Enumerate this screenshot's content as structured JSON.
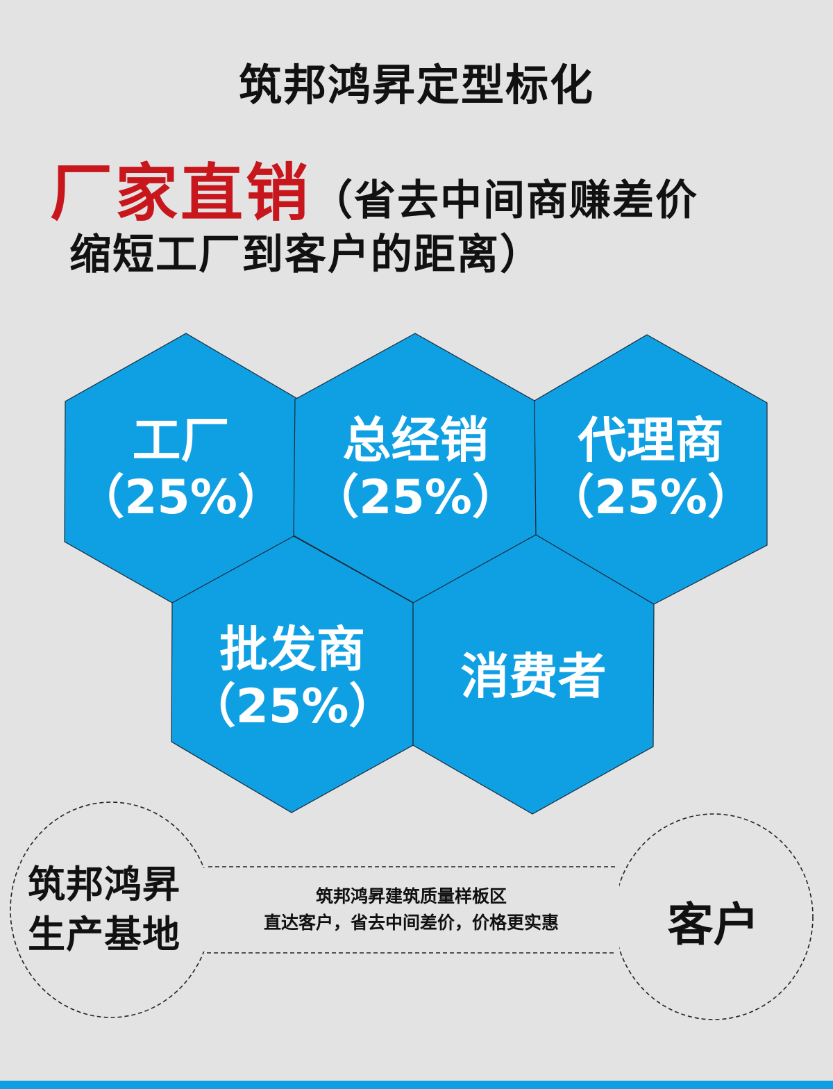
{
  "title": "筑邦鸿昇定型标化",
  "headline": {
    "highlight": "厂家直销",
    "paren_line1": "（省去中间商赚差价",
    "paren_line2": "缩短工厂到客户的距离）",
    "highlight_color": "#c8161d"
  },
  "hexagons": [
    {
      "name": "工厂",
      "pct": "（25%）"
    },
    {
      "name": "总经销",
      "pct": "（25%）"
    },
    {
      "name": "代理商",
      "pct": "（25%）"
    },
    {
      "name": "批发商",
      "pct": "（25%）"
    },
    {
      "name": "消费者",
      "pct": ""
    }
  ],
  "hex_color": "#0fa0e3",
  "flow": {
    "left_line1": "筑邦鸿昇",
    "left_line2": "生产基地",
    "middle_line1": "筑邦鸿昇建筑质量样板区",
    "middle_line2": "直达客户，省去中间差价，价格更实惠",
    "right": "客户"
  }
}
